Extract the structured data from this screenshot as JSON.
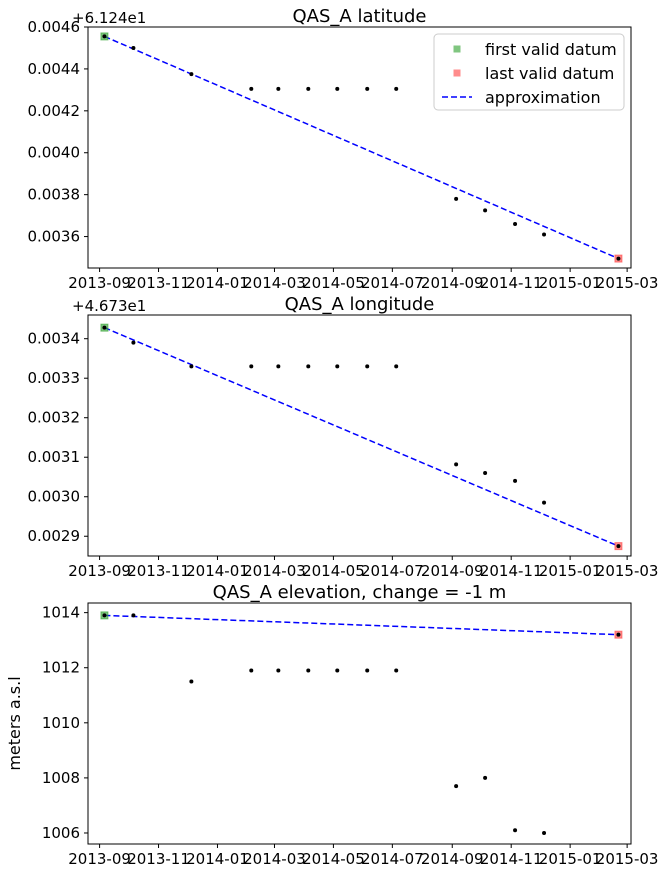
{
  "chart_data": [
    {
      "type": "scatter",
      "title": "QAS_A latitude",
      "offset_label": "+6.124e1",
      "xlabel": "",
      "ylabel": "",
      "x_ticks": [
        "2013-09",
        "2013-11",
        "2014-01",
        "2014-03",
        "2014-05",
        "2014-07",
        "2014-09",
        "2014-11",
        "2015-01",
        "2015-03"
      ],
      "ylim": [
        0.00345,
        0.0046
      ],
      "y_ticks": [
        "0.0036",
        "0.0038",
        "0.0040",
        "0.0042",
        "0.0044",
        "0.0046"
      ],
      "y_tick_values": [
        0.0036,
        0.0038,
        0.004,
        0.0042,
        0.0044,
        0.0046
      ],
      "legend": {
        "location": "upper-right",
        "entries": [
          "first valid datum",
          "last valid datum",
          "approximation"
        ]
      },
      "points": [
        {
          "x": "2013-09-06",
          "y": 0.004555
        },
        {
          "x": "2013-10-06",
          "y": 0.0045
        },
        {
          "x": "2013-12-05",
          "y": 0.004375
        },
        {
          "x": "2014-02-05",
          "y": 0.004305
        },
        {
          "x": "2014-03-05",
          "y": 0.004305
        },
        {
          "x": "2014-04-05",
          "y": 0.004305
        },
        {
          "x": "2014-05-05",
          "y": 0.004305
        },
        {
          "x": "2014-06-05",
          "y": 0.004305
        },
        {
          "x": "2014-07-05",
          "y": 0.004305
        },
        {
          "x": "2014-09-05",
          "y": 0.00378
        },
        {
          "x": "2014-10-05",
          "y": 0.003725
        },
        {
          "x": "2014-11-05",
          "y": 0.00366
        },
        {
          "x": "2014-12-05",
          "y": 0.00361
        },
        {
          "x": "2015-02-20",
          "y": 0.003495
        }
      ],
      "first_valid": {
        "x": "2013-09-06",
        "y": 0.004555
      },
      "last_valid": {
        "x": "2015-02-20",
        "y": 0.003495
      },
      "approximation": [
        {
          "x": "2013-09-06",
          "y": 0.004555
        },
        {
          "x": "2015-02-20",
          "y": 0.003495
        }
      ]
    },
    {
      "type": "scatter",
      "title": "QAS_A longitude",
      "offset_label": "+4.673e1",
      "xlabel": "",
      "ylabel": "",
      "x_ticks": [
        "2013-09",
        "2013-11",
        "2014-01",
        "2014-03",
        "2014-05",
        "2014-07",
        "2014-09",
        "2014-11",
        "2015-01",
        "2015-03"
      ],
      "ylim": [
        0.00285,
        0.00346
      ],
      "y_ticks": [
        "0.0029",
        "0.0030",
        "0.0031",
        "0.0032",
        "0.0033",
        "0.0034"
      ],
      "y_tick_values": [
        0.0029,
        0.003,
        0.0031,
        0.0032,
        0.0033,
        0.0034
      ],
      "points": [
        {
          "x": "2013-09-06",
          "y": 0.003428
        },
        {
          "x": "2013-10-06",
          "y": 0.00339
        },
        {
          "x": "2013-12-05",
          "y": 0.00333
        },
        {
          "x": "2014-02-05",
          "y": 0.00333
        },
        {
          "x": "2014-03-05",
          "y": 0.00333
        },
        {
          "x": "2014-04-05",
          "y": 0.00333
        },
        {
          "x": "2014-05-05",
          "y": 0.00333
        },
        {
          "x": "2014-06-05",
          "y": 0.00333
        },
        {
          "x": "2014-07-05",
          "y": 0.00333
        },
        {
          "x": "2014-09-05",
          "y": 0.003082
        },
        {
          "x": "2014-10-05",
          "y": 0.00306
        },
        {
          "x": "2014-11-05",
          "y": 0.00304
        },
        {
          "x": "2014-12-05",
          "y": 0.002985
        },
        {
          "x": "2015-02-20",
          "y": 0.002875
        }
      ],
      "first_valid": {
        "x": "2013-09-06",
        "y": 0.003428
      },
      "last_valid": {
        "x": "2015-02-20",
        "y": 0.002875
      },
      "approximation": [
        {
          "x": "2013-09-06",
          "y": 0.003428
        },
        {
          "x": "2015-02-20",
          "y": 0.002875
        }
      ]
    },
    {
      "type": "scatter",
      "title": "QAS_A elevation, change = -1 m",
      "offset_label": "",
      "xlabel": "",
      "ylabel": "meters a.s.l",
      "x_ticks": [
        "2013-09",
        "2013-11",
        "2014-01",
        "2014-03",
        "2014-05",
        "2014-07",
        "2014-09",
        "2014-11",
        "2015-01",
        "2015-03"
      ],
      "ylim": [
        1005.6,
        1014.35
      ],
      "y_ticks": [
        "1006",
        "1008",
        "1010",
        "1012",
        "1014"
      ],
      "y_tick_values": [
        1006,
        1008,
        1010,
        1012,
        1014
      ],
      "points": [
        {
          "x": "2013-09-06",
          "y": 1013.9
        },
        {
          "x": "2013-10-06",
          "y": 1013.9
        },
        {
          "x": "2013-12-05",
          "y": 1011.5
        },
        {
          "x": "2014-02-05",
          "y": 1011.9
        },
        {
          "x": "2014-03-05",
          "y": 1011.9
        },
        {
          "x": "2014-04-05",
          "y": 1011.9
        },
        {
          "x": "2014-05-05",
          "y": 1011.9
        },
        {
          "x": "2014-06-05",
          "y": 1011.9
        },
        {
          "x": "2014-07-05",
          "y": 1011.9
        },
        {
          "x": "2014-09-05",
          "y": 1007.7
        },
        {
          "x": "2014-10-05",
          "y": 1008.0
        },
        {
          "x": "2014-11-05",
          "y": 1006.1
        },
        {
          "x": "2014-12-05",
          "y": 1006.0
        },
        {
          "x": "2015-02-20",
          "y": 1013.2
        }
      ],
      "first_valid": {
        "x": "2013-09-06",
        "y": 1013.9
      },
      "last_valid": {
        "x": "2015-02-20",
        "y": 1013.2
      },
      "approximation": [
        {
          "x": "2013-09-06",
          "y": 1013.9
        },
        {
          "x": "2015-02-20",
          "y": 1013.2
        }
      ]
    }
  ],
  "colors": {
    "first_valid": "#2ca02c",
    "last_valid": "#ff4040",
    "approximation": "#0000ff",
    "points": "#000000"
  }
}
